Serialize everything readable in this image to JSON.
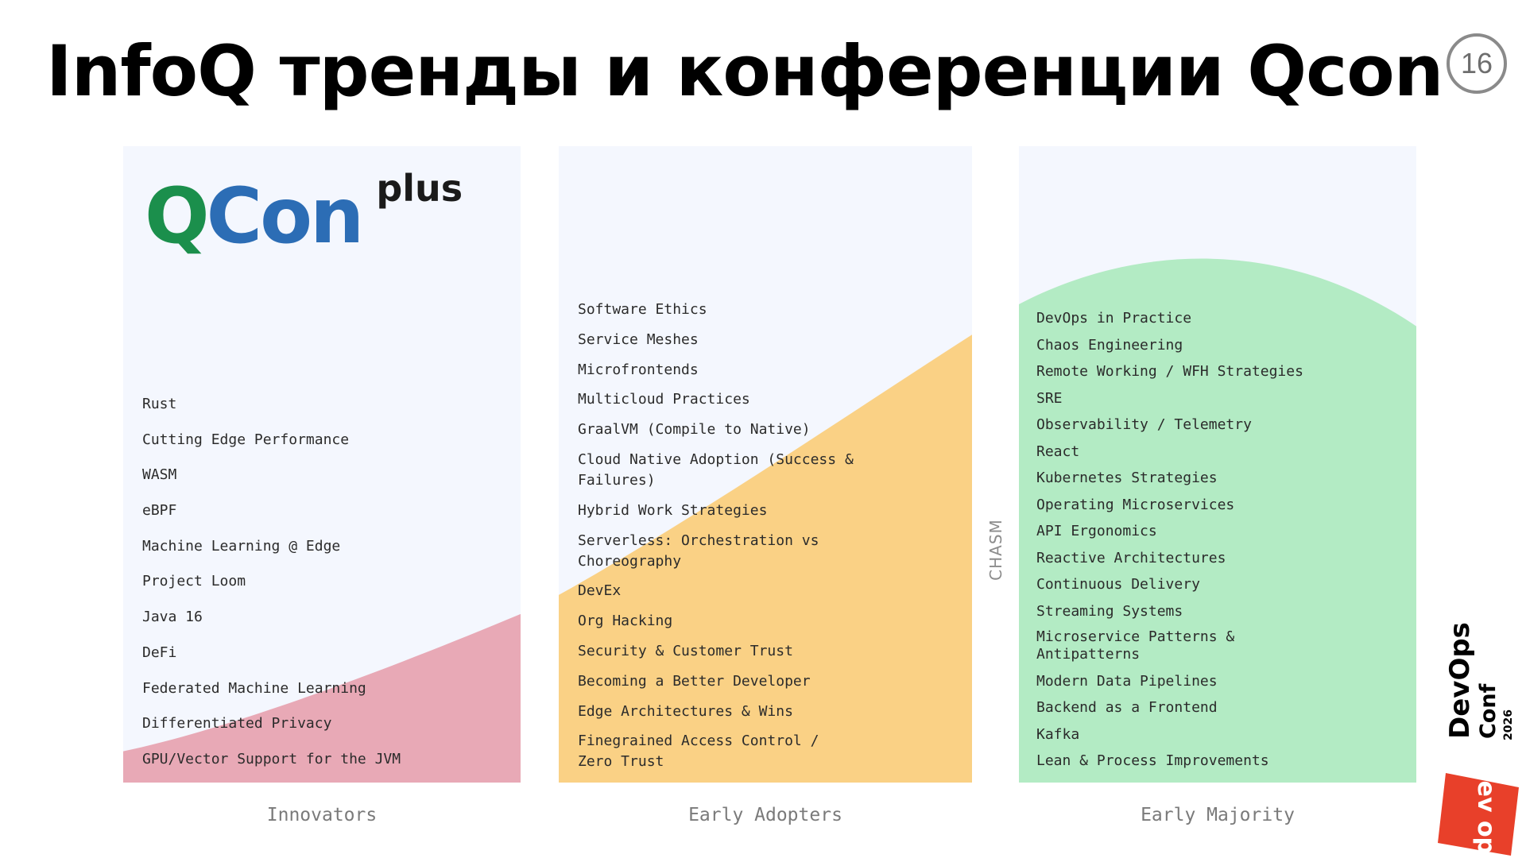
{
  "slide": {
    "title": "InfoQ тренды и конференции Qcon",
    "page_number": "16"
  },
  "logo": {
    "q": "Q",
    "con": "Con",
    "plus": "plus"
  },
  "columns": {
    "innovators": {
      "label": "Innovators",
      "items": [
        "Rust",
        "Cutting Edge Performance",
        "WASM",
        "eBPF",
        "Machine Learning @ Edge",
        "Project Loom",
        "Java 16",
        "DeFi",
        "Federated Machine Learning",
        "Differentiated Privacy",
        "GPU/Vector Support for the JVM"
      ]
    },
    "early_adopters": {
      "label": "Early Adopters",
      "items": [
        "Software Ethics",
        "Service Meshes",
        "Microfrontends",
        "Multicloud Practices",
        "GraalVM (Compile to Native)",
        "Cloud Native Adoption (Success & Failures)",
        "Hybrid Work Strategies",
        "Serverless: Orchestration vs Choreography",
        "DevEx",
        "Org Hacking",
        "Security & Customer Trust",
        "Becoming a Better Developer",
        "Edge Architectures & Wins",
        "Finegrained Access Control / Zero Trust"
      ]
    },
    "chasm_label": "CHASM",
    "early_majority": {
      "label": "Early Majority",
      "items": [
        "DevOps in Practice",
        "Chaos Engineering",
        "Remote Working / WFH Strategies",
        "SRE",
        "Observability / Telemetry",
        "React",
        "Kubernetes Strategies",
        "Operating Microservices",
        "API Ergonomics",
        "Reactive Architectures",
        "Continuous Delivery",
        "Streaming Systems",
        "Microservice Patterns & Antipatterns",
        "Modern Data Pipelines",
        "Backend as a Frontend",
        "Kafka",
        "Lean & Process Improvements"
      ]
    }
  },
  "conference_logo": {
    "word1": "DevOps",
    "word2": "Conf",
    "year": "2026",
    "badge_text": "dev ops"
  },
  "colors": {
    "innovators_fill": "#e8a9b6",
    "early_adopters_fill": "#fad185",
    "early_majority_fill": "#b3ebc4",
    "panel_bg": "#f4f7fe",
    "qcon_q": "#1b8f4c",
    "qcon_con": "#2c6db5",
    "badge_red": "#e8402a"
  }
}
